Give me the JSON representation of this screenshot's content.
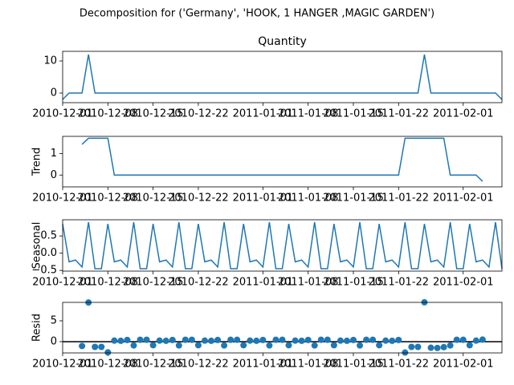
{
  "title": "Decomposition for ('Germany', 'HOOK, 1 HANGER ,MAGIC GARDEN')",
  "chart_data": [
    {
      "type": "line",
      "title": "Quantity",
      "color": "#1f77b4",
      "x": [
        "2010-12-01",
        "2010-12-02",
        "2010-12-03",
        "2010-12-04",
        "2010-12-05",
        "2010-12-06",
        "2010-12-07",
        "2010-12-08",
        "2010-12-09",
        "2010-12-10",
        "2010-12-11",
        "2010-12-12",
        "2010-12-13",
        "2010-12-14",
        "2010-12-15",
        "2010-12-16",
        "2010-12-17",
        "2010-12-18",
        "2010-12-19",
        "2010-12-20",
        "2010-12-21",
        "2010-12-22",
        "2010-12-23",
        "2010-12-24",
        "2010-12-25",
        "2010-12-26",
        "2010-12-27",
        "2010-12-28",
        "2010-12-29",
        "2010-12-30",
        "2010-12-31",
        "2011-01-01",
        "2011-01-02",
        "2011-01-03",
        "2011-01-04",
        "2011-01-05",
        "2011-01-06",
        "2011-01-07",
        "2011-01-08",
        "2011-01-09",
        "2011-01-10",
        "2011-01-11",
        "2011-01-12",
        "2011-01-13",
        "2011-01-14",
        "2011-01-15",
        "2011-01-16",
        "2011-01-17",
        "2011-01-18",
        "2011-01-19",
        "2011-01-20",
        "2011-01-21",
        "2011-01-22",
        "2011-01-23",
        "2011-01-24",
        "2011-01-25",
        "2011-01-26",
        "2011-01-27",
        "2011-01-28",
        "2011-01-29",
        "2011-01-30",
        "2011-01-31",
        "2011-02-01",
        "2011-02-02",
        "2011-02-03",
        "2011-02-04",
        "2011-02-05",
        "2011-02-06",
        "2011-02-07"
      ],
      "values": [
        -2,
        0,
        0,
        0,
        12,
        0,
        0,
        0,
        0,
        0,
        0,
        0,
        0,
        0,
        0,
        0,
        0,
        0,
        0,
        0,
        0,
        0,
        0,
        0,
        0,
        0,
        0,
        0,
        0,
        0,
        0,
        0,
        0,
        0,
        0,
        0,
        0,
        0,
        0,
        0,
        0,
        0,
        0,
        0,
        0,
        0,
        0,
        0,
        0,
        0,
        0,
        0,
        0,
        0,
        0,
        0,
        12,
        0,
        0,
        0,
        0,
        0,
        0,
        0,
        0,
        0,
        0,
        0,
        -2
      ],
      "xlim": [
        "2010-12-01",
        "2011-02-07"
      ],
      "xticks": [
        "2010-12-01",
        "2010-12-08",
        "2010-12-15",
        "2010-12-22",
        "2011-01-01",
        "2011-01-08",
        "2011-01-15",
        "2011-01-22",
        "2011-02-01"
      ],
      "ylim": [
        -3,
        13
      ],
      "yticks": [
        0,
        10
      ]
    },
    {
      "type": "line",
      "y_label": "Trend",
      "color": "#1f77b4",
      "x": [
        "2010-12-01",
        "2010-12-02",
        "2010-12-03",
        "2010-12-04",
        "2010-12-05",
        "2010-12-06",
        "2010-12-07",
        "2010-12-08",
        "2010-12-09",
        "2010-12-10",
        "2010-12-11",
        "2010-12-12",
        "2010-12-13",
        "2010-12-14",
        "2010-12-15",
        "2010-12-16",
        "2010-12-17",
        "2010-12-18",
        "2010-12-19",
        "2010-12-20",
        "2010-12-21",
        "2010-12-22",
        "2010-12-23",
        "2010-12-24",
        "2010-12-25",
        "2010-12-26",
        "2010-12-27",
        "2010-12-28",
        "2010-12-29",
        "2010-12-30",
        "2010-12-31",
        "2011-01-01",
        "2011-01-02",
        "2011-01-03",
        "2011-01-04",
        "2011-01-05",
        "2011-01-06",
        "2011-01-07",
        "2011-01-08",
        "2011-01-09",
        "2011-01-10",
        "2011-01-11",
        "2011-01-12",
        "2011-01-13",
        "2011-01-14",
        "2011-01-15",
        "2011-01-16",
        "2011-01-17",
        "2011-01-18",
        "2011-01-19",
        "2011-01-20",
        "2011-01-21",
        "2011-01-22",
        "2011-01-23",
        "2011-01-24",
        "2011-01-25",
        "2011-01-26",
        "2011-01-27",
        "2011-01-28",
        "2011-01-29",
        "2011-01-30",
        "2011-01-31",
        "2011-02-01",
        "2011-02-02",
        "2011-02-03",
        "2011-02-04",
        "2011-02-05",
        "2011-02-06",
        "2011-02-07"
      ],
      "values": [
        null,
        null,
        null,
        1.43,
        1.71,
        1.71,
        1.71,
        1.71,
        0,
        0,
        0,
        0,
        0,
        0,
        0,
        0,
        0,
        0,
        0,
        0,
        0,
        0,
        0,
        0,
        0,
        0,
        0,
        0,
        0,
        0,
        0,
        0,
        0,
        0,
        0,
        0,
        0,
        0,
        0,
        0,
        0,
        0,
        0,
        0,
        0,
        0,
        0,
        0,
        0,
        0,
        0,
        0,
        0,
        1.71,
        1.71,
        1.71,
        1.71,
        1.71,
        1.71,
        1.71,
        0,
        0,
        0,
        0,
        0,
        -0.29,
        null,
        null,
        null
      ],
      "xlim": [
        "2010-12-01",
        "2011-02-07"
      ],
      "xticks": [
        "2010-12-01",
        "2010-12-08",
        "2010-12-15",
        "2010-12-22",
        "2011-01-01",
        "2011-01-08",
        "2011-01-15",
        "2011-01-22",
        "2011-02-01"
      ],
      "ylim": [
        -0.55,
        1.8
      ],
      "yticks": [
        0,
        1
      ]
    },
    {
      "type": "line",
      "y_label": "Seasonal",
      "color": "#1f77b4",
      "x": [
        "2010-12-01",
        "2010-12-02",
        "2010-12-03",
        "2010-12-04",
        "2010-12-05",
        "2010-12-06",
        "2010-12-07",
        "2010-12-08",
        "2010-12-09",
        "2010-12-10",
        "2010-12-11",
        "2010-12-12",
        "2010-12-13",
        "2010-12-14",
        "2010-12-15",
        "2010-12-16",
        "2010-12-17",
        "2010-12-18",
        "2010-12-19",
        "2010-12-20",
        "2010-12-21",
        "2010-12-22",
        "2010-12-23",
        "2010-12-24",
        "2010-12-25",
        "2010-12-26",
        "2010-12-27",
        "2010-12-28",
        "2010-12-29",
        "2010-12-30",
        "2010-12-31",
        "2011-01-01",
        "2011-01-02",
        "2011-01-03",
        "2011-01-04",
        "2011-01-05",
        "2011-01-06",
        "2011-01-07",
        "2011-01-08",
        "2011-01-09",
        "2011-01-10",
        "2011-01-11",
        "2011-01-12",
        "2011-01-13",
        "2011-01-14",
        "2011-01-15",
        "2011-01-16",
        "2011-01-17",
        "2011-01-18",
        "2011-01-19",
        "2011-01-20",
        "2011-01-21",
        "2011-01-22",
        "2011-01-23",
        "2011-01-24",
        "2011-01-25",
        "2011-01-26",
        "2011-01-27",
        "2011-01-28",
        "2011-01-29",
        "2011-01-30",
        "2011-01-31",
        "2011-02-01",
        "2011-02-02",
        "2011-02-03",
        "2011-02-04",
        "2011-02-05",
        "2011-02-06",
        "2011-02-07"
      ],
      "values": [
        0.85,
        -0.25,
        -0.2,
        -0.4,
        0.9,
        -0.45,
        -0.45,
        0.85,
        -0.25,
        -0.2,
        -0.4,
        0.9,
        -0.45,
        -0.45,
        0.85,
        -0.25,
        -0.2,
        -0.4,
        0.9,
        -0.45,
        -0.45,
        0.85,
        -0.25,
        -0.2,
        -0.4,
        0.9,
        -0.45,
        -0.45,
        0.85,
        -0.25,
        -0.2,
        -0.4,
        0.9,
        -0.45,
        -0.45,
        0.85,
        -0.25,
        -0.2,
        -0.4,
        0.9,
        -0.45,
        -0.45,
        0.85,
        -0.25,
        -0.2,
        -0.4,
        0.9,
        -0.45,
        -0.45,
        0.85,
        -0.25,
        -0.2,
        -0.4,
        0.9,
        -0.45,
        -0.45,
        0.85,
        -0.25,
        -0.2,
        -0.4,
        0.9,
        -0.45,
        -0.45,
        0.85,
        -0.25,
        -0.2,
        -0.4,
        0.9,
        -0.45
      ],
      "xlim": [
        "2010-12-01",
        "2011-02-07"
      ],
      "xticks": [
        "2010-12-01",
        "2010-12-08",
        "2010-12-15",
        "2010-12-22",
        "2011-01-01",
        "2011-01-08",
        "2011-01-15",
        "2011-01-22",
        "2011-02-01"
      ],
      "ylim": [
        -0.52,
        0.97
      ],
      "yticks": [
        0.5,
        {
          "value": 0,
          "label": "0.0"
        },
        {
          "value": -0.5,
          "label": "−0.5"
        }
      ]
    },
    {
      "type": "scatter",
      "y_label": "Resid",
      "color": "#1f77b4",
      "x": [
        "2010-12-01",
        "2010-12-02",
        "2010-12-03",
        "2010-12-04",
        "2010-12-05",
        "2010-12-06",
        "2010-12-07",
        "2010-12-08",
        "2010-12-09",
        "2010-12-10",
        "2010-12-11",
        "2010-12-12",
        "2010-12-13",
        "2010-12-14",
        "2010-12-15",
        "2010-12-16",
        "2010-12-17",
        "2010-12-18",
        "2010-12-19",
        "2010-12-20",
        "2010-12-21",
        "2010-12-22",
        "2010-12-23",
        "2010-12-24",
        "2010-12-25",
        "2010-12-26",
        "2010-12-27",
        "2010-12-28",
        "2010-12-29",
        "2010-12-30",
        "2010-12-31",
        "2011-01-01",
        "2011-01-02",
        "2011-01-03",
        "2011-01-04",
        "2011-01-05",
        "2011-01-06",
        "2011-01-07",
        "2011-01-08",
        "2011-01-09",
        "2011-01-10",
        "2011-01-11",
        "2011-01-12",
        "2011-01-13",
        "2011-01-14",
        "2011-01-15",
        "2011-01-16",
        "2011-01-17",
        "2011-01-18",
        "2011-01-19",
        "2011-01-20",
        "2011-01-21",
        "2011-01-22",
        "2011-01-23",
        "2011-01-24",
        "2011-01-25",
        "2011-01-26",
        "2011-01-27",
        "2011-01-28",
        "2011-01-29",
        "2011-01-30",
        "2011-01-31",
        "2011-02-01",
        "2011-02-02",
        "2011-02-03",
        "2011-02-04",
        "2011-02-05",
        "2011-02-06",
        "2011-02-07"
      ],
      "values": [
        null,
        null,
        null,
        -1.03,
        9.39,
        -1.26,
        -1.26,
        -2.56,
        0.25,
        0.2,
        0.4,
        -0.9,
        0.45,
        0.45,
        -0.85,
        0.25,
        0.2,
        0.4,
        -0.9,
        0.45,
        0.45,
        -0.85,
        0.25,
        0.2,
        0.4,
        -0.9,
        0.45,
        0.45,
        -0.85,
        0.25,
        0.2,
        0.4,
        -0.9,
        0.45,
        0.45,
        -0.85,
        0.25,
        0.2,
        0.4,
        -0.9,
        0.45,
        0.45,
        -0.85,
        0.25,
        0.2,
        0.4,
        -0.9,
        0.45,
        0.45,
        -0.85,
        0.25,
        0.2,
        0.4,
        -2.61,
        -1.26,
        -1.26,
        9.44,
        -1.46,
        -1.51,
        -1.31,
        -0.9,
        0.45,
        0.45,
        -0.85,
        0.25,
        0.49,
        null,
        null,
        null
      ],
      "xlim": [
        "2010-12-01",
        "2011-02-07"
      ],
      "xticks": [
        "2010-12-01",
        "2010-12-08",
        "2010-12-15",
        "2010-12-22",
        "2011-01-01",
        "2011-01-08",
        "2011-01-15",
        "2011-01-22",
        "2011-02-01"
      ],
      "ylim": [
        -2.7,
        9.42
      ],
      "yticks": [
        0,
        5
      ]
    }
  ]
}
